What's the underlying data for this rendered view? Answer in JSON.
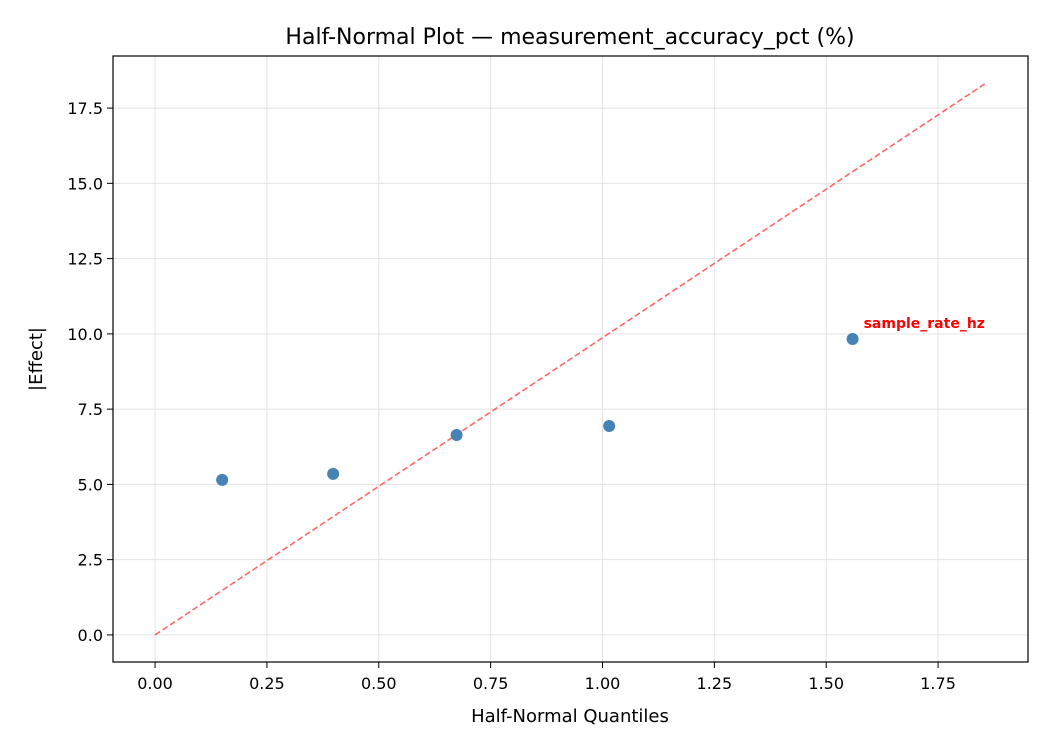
{
  "chart_data": {
    "type": "scatter",
    "title": "Half-Normal Plot — measurement_accuracy_pct (%)",
    "xlabel": "Half-Normal Quantiles",
    "ylabel": "|Effect|",
    "xlim": [
      -0.094,
      1.951
    ],
    "ylim": [
      -0.9,
      19.23
    ],
    "xticks": [
      0.0,
      0.25,
      0.5,
      0.75,
      1.0,
      1.25,
      1.5,
      1.75
    ],
    "xtick_labels": [
      "0.00",
      "0.25",
      "0.50",
      "0.75",
      "1.00",
      "1.25",
      "1.50",
      "1.75"
    ],
    "yticks": [
      0.0,
      2.5,
      5.0,
      7.5,
      10.0,
      12.5,
      15.0,
      17.5
    ],
    "ytick_labels": [
      "0.0",
      "2.5",
      "5.0",
      "7.5",
      "10.0",
      "12.5",
      "15.0",
      "17.5"
    ],
    "grid": true,
    "points": [
      {
        "x": 0.15,
        "y": 5.15
      },
      {
        "x": 0.398,
        "y": 5.35
      },
      {
        "x": 0.674,
        "y": 6.64
      },
      {
        "x": 1.015,
        "y": 6.94
      },
      {
        "x": 1.559,
        "y": 9.83,
        "label": "sample_rate_hz"
      }
    ],
    "reference_line": {
      "x": [
        0.0,
        1.857
      ],
      "y": [
        0.0,
        18.33
      ]
    },
    "colors": {
      "points": "#4682b4",
      "reference_line": "#ff6666",
      "annotation": "#ff0000"
    }
  }
}
